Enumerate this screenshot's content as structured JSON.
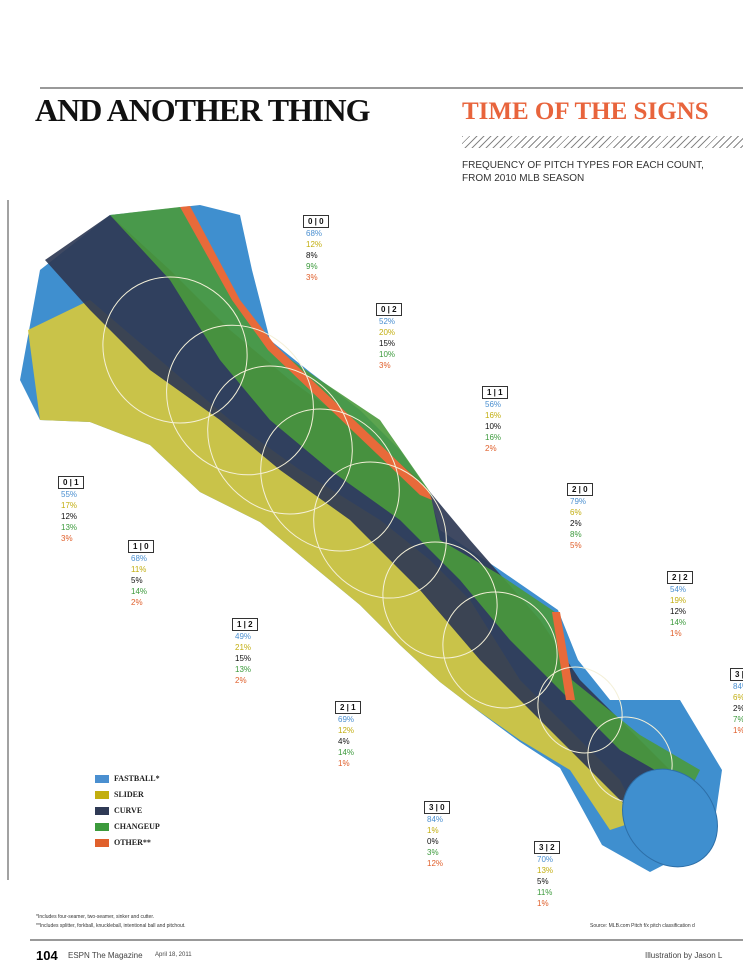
{
  "header": {
    "section": "AND ANOTHER THING",
    "title": "TIME OF THE SIGNS",
    "subtitle_line1": "FREQUENCY OF PITCH TYPES FOR EACH COUNT,",
    "subtitle_line2": "FROM 2010 MLB SEASON"
  },
  "counts": [
    {
      "label": "0 | 0",
      "values": [
        "68%",
        "12%",
        "8%",
        "9%",
        "3%"
      ]
    },
    {
      "label": "0 | 2",
      "values": [
        "52%",
        "20%",
        "15%",
        "10%",
        "3%"
      ]
    },
    {
      "label": "1 | 1",
      "values": [
        "56%",
        "16%",
        "10%",
        "16%",
        "2%"
      ]
    },
    {
      "label": "2 | 0",
      "values": [
        "79%",
        "6%",
        "2%",
        "8%",
        "5%"
      ]
    },
    {
      "label": "2 | 2",
      "values": [
        "54%",
        "19%",
        "12%",
        "14%",
        "1%"
      ]
    },
    {
      "label": "3 |",
      "values": [
        "84%",
        "6%",
        "2%",
        "7%",
        "1%"
      ]
    },
    {
      "label": "0 | 1",
      "values": [
        "55%",
        "17%",
        "12%",
        "13%",
        "3%"
      ]
    },
    {
      "label": "1 | 0",
      "values": [
        "68%",
        "11%",
        "5%",
        "14%",
        "2%"
      ]
    },
    {
      "label": "1 | 2",
      "values": [
        "49%",
        "21%",
        "15%",
        "13%",
        "2%"
      ]
    },
    {
      "label": "2 | 1",
      "values": [
        "69%",
        "12%",
        "4%",
        "14%",
        "1%"
      ]
    },
    {
      "label": "3 | 0",
      "values": [
        "84%",
        "1%",
        "0%",
        "3%",
        "12%"
      ]
    },
    {
      "label": "3 | 2",
      "values": [
        "70%",
        "13%",
        "5%",
        "11%",
        "1%"
      ]
    }
  ],
  "legend": [
    "FASTBALL*",
    "SLIDER",
    "CURVE",
    "CHANGEUP",
    "OTHER**"
  ],
  "footnotes": [
    "*Includes four-seamer, two-seamer, sinker and cutter.",
    "**Includes splitter, forkball, knuckleball, intentional ball and pitchout."
  ],
  "source": "Source: MLB.com Pitch f/x pitch classification d",
  "footer": {
    "page": "104",
    "magazine": "ESPN The Magazine",
    "date": "April 18, 2011",
    "credit": "Illustration by Jason L"
  }
}
